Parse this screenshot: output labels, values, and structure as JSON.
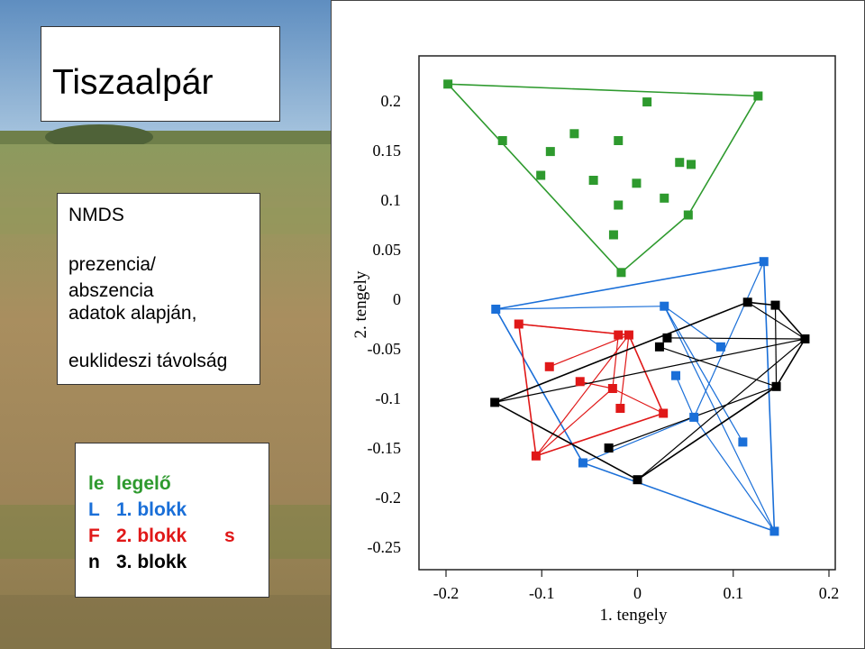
{
  "slide": {
    "title": "Tiszaalpár",
    "method": "NMDS",
    "desc1": "prezencia/",
    "desc2": "abszencia",
    "desc3": "adatok alapján,",
    "desc4": "euklideszi távolság"
  },
  "legend": {
    "ghost": [
      "le",
      "L",
      "F",
      "n",
      "s"
    ],
    "items": [
      {
        "label": "legelő",
        "color": "#2e9a2e"
      },
      {
        "label": "1. blokk",
        "color": "#1a6fd8"
      },
      {
        "label": "2. blokk",
        "color": "#e01818"
      },
      {
        "label": "3. blokk",
        "color": "#000000"
      }
    ]
  },
  "chart_data": {
    "type": "scatter",
    "xlabel": "1. tengely",
    "ylabel": "2. tengely",
    "xlim": [
      -0.2,
      0.2
    ],
    "ylim": [
      -0.25,
      0.2
    ],
    "xticks": [
      "-0.2",
      "-0.1",
      "0",
      "0.1",
      "0.2"
    ],
    "yticks": [
      "0.2",
      "0.15",
      "0.1",
      "0.05",
      "0",
      "-0.05",
      "-0.1",
      "-0.15",
      "-0.2",
      "-0.25"
    ],
    "xtick_values": [
      -0.2,
      -0.1,
      0,
      0.1,
      0.2
    ],
    "ytick_values": [
      0.2,
      0.15,
      0.1,
      0.05,
      0,
      -0.05,
      -0.1,
      -0.15,
      -0.2,
      -0.25
    ],
    "series": [
      {
        "name": "legelő",
        "color": "#2e9a2e",
        "points": [
          [
            -0.198,
            0.217
          ],
          [
            0.126,
            0.205
          ],
          [
            0.01,
            0.199
          ],
          [
            -0.141,
            0.16
          ],
          [
            -0.091,
            0.149
          ],
          [
            -0.066,
            0.167
          ],
          [
            -0.02,
            0.16
          ],
          [
            0.044,
            0.138
          ],
          [
            0.056,
            0.136
          ],
          [
            -0.101,
            0.125
          ],
          [
            -0.046,
            0.12
          ],
          [
            -0.001,
            0.117
          ],
          [
            0.028,
            0.102
          ],
          [
            -0.02,
            0.095
          ],
          [
            0.053,
            0.085
          ],
          [
            -0.025,
            0.065
          ],
          [
            -0.017,
            0.027
          ]
        ],
        "hull": [
          0,
          1,
          14,
          16
        ]
      },
      {
        "name": "1. blokk",
        "color": "#1a6fd8",
        "points": [
          [
            -0.148,
            -0.01
          ],
          [
            0.132,
            0.038
          ],
          [
            0.028,
            -0.007
          ],
          [
            0.087,
            -0.048
          ],
          [
            0.04,
            -0.077
          ],
          [
            0.059,
            -0.119
          ],
          [
            0.11,
            -0.144
          ],
          [
            -0.057,
            -0.165
          ],
          [
            0.143,
            -0.234
          ]
        ],
        "hull": [
          0,
          1,
          8,
          7
        ]
      },
      {
        "name": "2. blokk",
        "color": "#e01818",
        "points": [
          [
            -0.124,
            -0.025
          ],
          [
            -0.02,
            -0.036
          ],
          [
            -0.009,
            -0.036
          ],
          [
            -0.092,
            -0.068
          ],
          [
            -0.06,
            -0.083
          ],
          [
            -0.026,
            -0.09
          ],
          [
            -0.018,
            -0.11
          ],
          [
            0.027,
            -0.115
          ],
          [
            -0.106,
            -0.158
          ]
        ],
        "hull": [
          0,
          2,
          7,
          8
        ]
      },
      {
        "name": "3. blokk",
        "color": "#000000",
        "points": [
          [
            0.115,
            -0.003
          ],
          [
            0.144,
            -0.006
          ],
          [
            0.175,
            -0.04
          ],
          [
            0.031,
            -0.039
          ],
          [
            0.023,
            -0.048
          ],
          [
            0.145,
            -0.088
          ],
          [
            -0.149,
            -0.104
          ],
          [
            -0.03,
            -0.15
          ],
          [
            0.0,
            -0.182
          ]
        ],
        "hull": [
          0,
          1,
          2,
          5,
          8,
          6
        ]
      }
    ]
  }
}
